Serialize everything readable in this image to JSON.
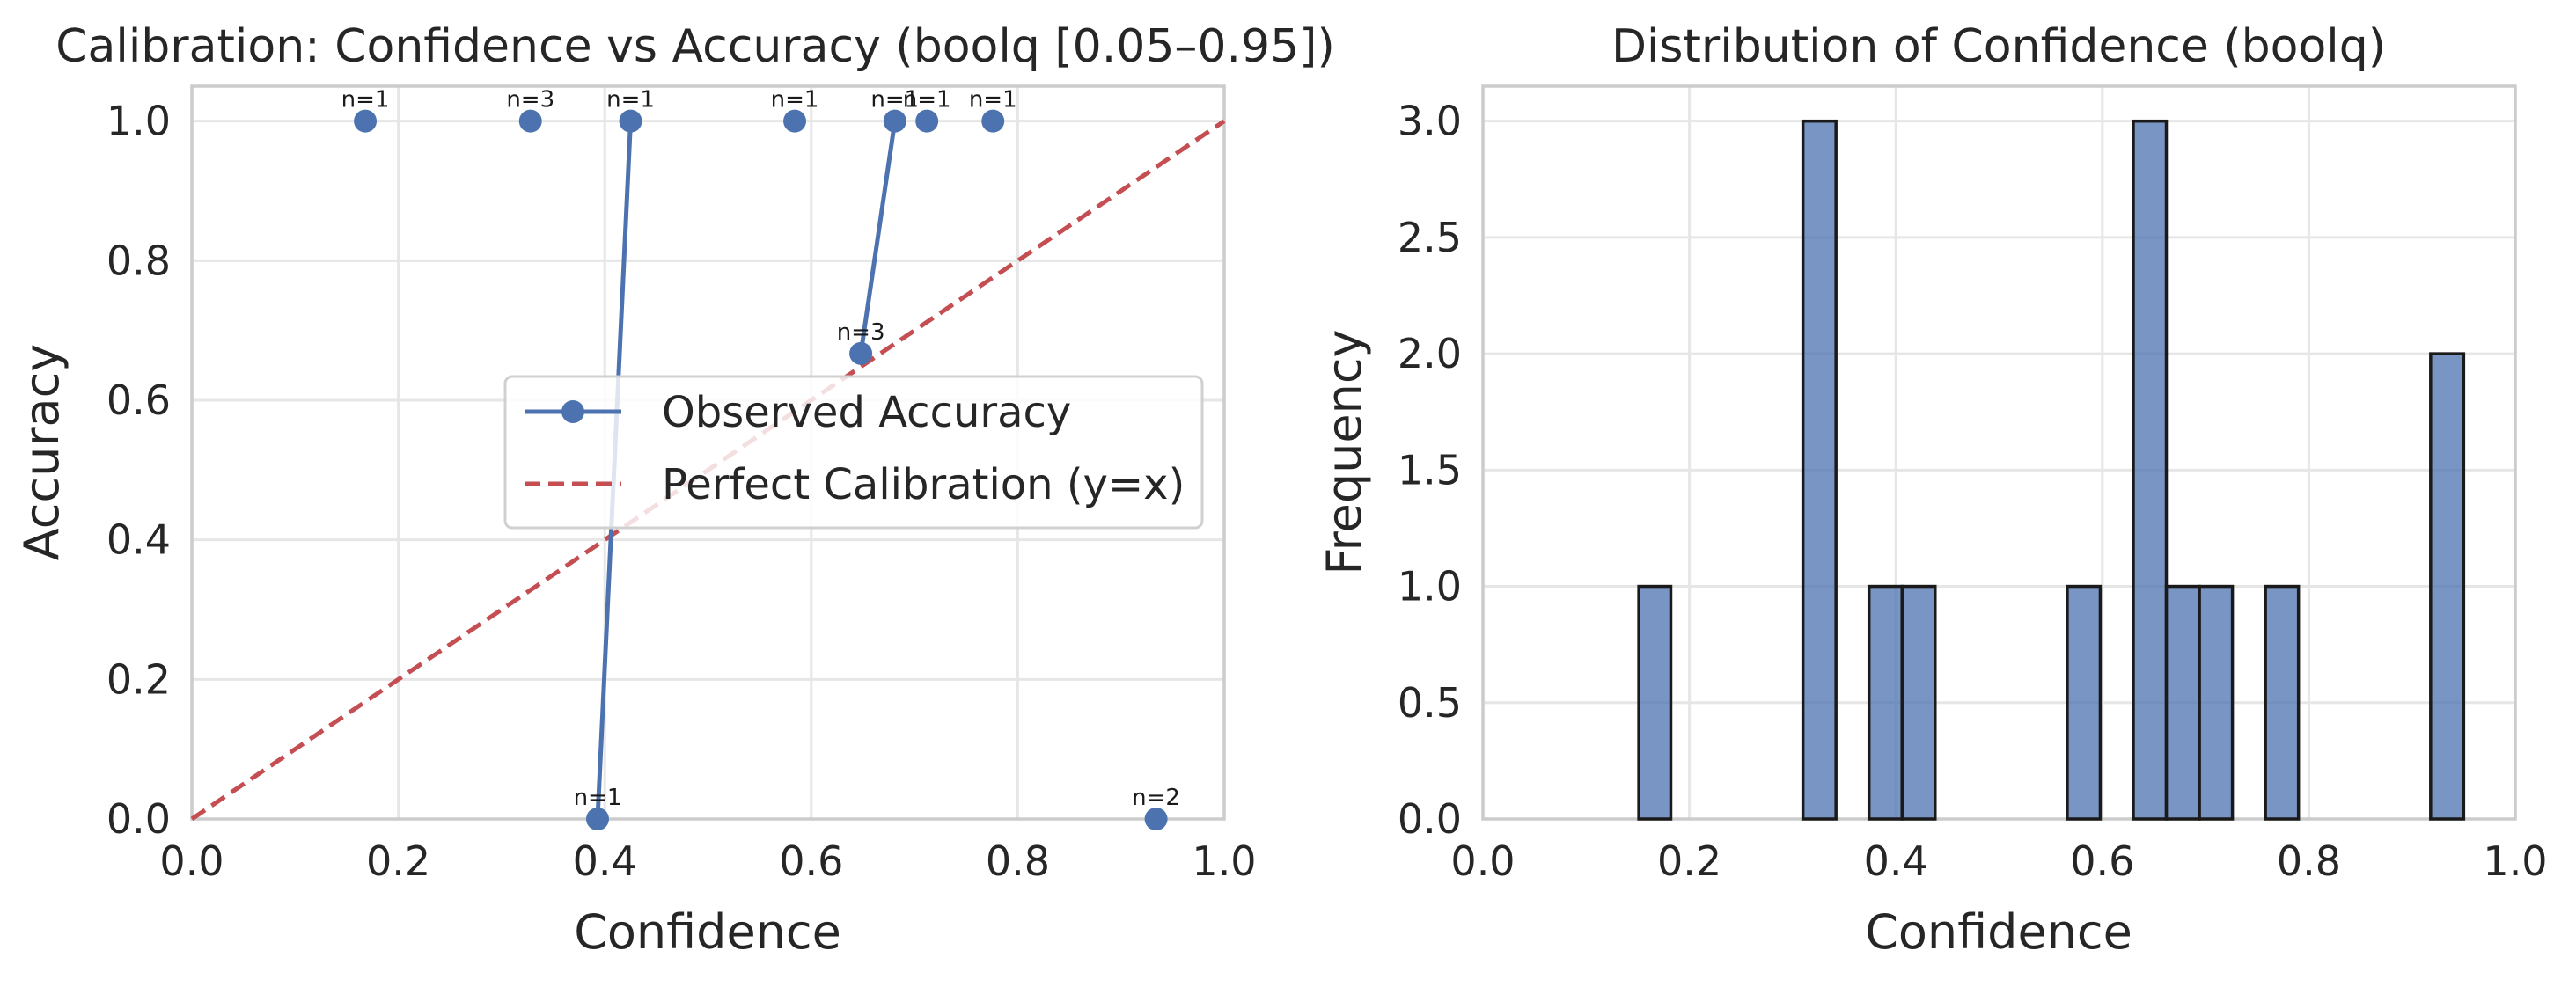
{
  "chart_data": [
    {
      "type": "line",
      "title": "Calibration: Confidence vs Accuracy (boolq [0.05–0.95])",
      "xlabel": "Confidence",
      "ylabel": "Accuracy",
      "xlim": [
        0,
        1
      ],
      "ylim": [
        0,
        1.05
      ],
      "x_ticks": [
        "0.0",
        "0.2",
        "0.4",
        "0.6",
        "0.8",
        "1.0"
      ],
      "y_ticks": [
        "0.0",
        "0.2",
        "0.4",
        "0.6",
        "0.8",
        "1.0"
      ],
      "grid": true,
      "legend_position": "center-right",
      "series": [
        {
          "name": "Observed Accuracy",
          "color": "#4C72B0",
          "style": "solid-line-with-circle-markers",
          "points": [
            {
              "x": 0.168,
              "y": 1.0,
              "label": "n=1"
            },
            {
              "x": 0.328,
              "y": 1.0,
              "label": "n=3"
            },
            {
              "x": 0.425,
              "y": 1.0,
              "label": "n=1"
            },
            {
              "x": 0.393,
              "y": 0.0,
              "label": "n=1"
            },
            {
              "x": 0.584,
              "y": 1.0,
              "label": "n=1"
            },
            {
              "x": 0.648,
              "y": 0.667,
              "label": "n=3"
            },
            {
              "x": 0.681,
              "y": 1.0,
              "label": "n=1"
            },
            {
              "x": 0.712,
              "y": 1.0,
              "label": "n=1"
            },
            {
              "x": 0.776,
              "y": 1.0,
              "label": "n=1"
            },
            {
              "x": 0.934,
              "y": 0.0,
              "label": "n=2"
            }
          ],
          "line_segments": [
            [
              0.393,
              0.0,
              0.425,
              1.0
            ],
            [
              0.648,
              0.667,
              0.681,
              1.0
            ]
          ]
        },
        {
          "name": "Perfect Calibration (y=x)",
          "color": "#C44E52",
          "style": "dashed",
          "points": [
            {
              "x": 0,
              "y": 0
            },
            {
              "x": 1,
              "y": 1
            }
          ]
        }
      ]
    },
    {
      "type": "bar",
      "title": "Distribution of Confidence (boolq)",
      "xlabel": "Confidence",
      "ylabel": "Frequency",
      "xlim": [
        0,
        1
      ],
      "ylim": [
        0,
        3.15
      ],
      "x_ticks": [
        "0.0",
        "0.2",
        "0.4",
        "0.6",
        "0.8",
        "1.0"
      ],
      "y_ticks": [
        "0.0",
        "0.5",
        "1.0",
        "1.5",
        "2.0",
        "2.5",
        "3.0"
      ],
      "grid": true,
      "color": "#4C72B0",
      "bins": [
        {
          "start": 0.151,
          "end": 0.182,
          "count": 1
        },
        {
          "start": 0.31,
          "end": 0.342,
          "count": 3
        },
        {
          "start": 0.374,
          "end": 0.406,
          "count": 1
        },
        {
          "start": 0.406,
          "end": 0.438,
          "count": 1
        },
        {
          "start": 0.566,
          "end": 0.598,
          "count": 1
        },
        {
          "start": 0.63,
          "end": 0.662,
          "count": 3
        },
        {
          "start": 0.662,
          "end": 0.694,
          "count": 1
        },
        {
          "start": 0.694,
          "end": 0.726,
          "count": 1
        },
        {
          "start": 0.758,
          "end": 0.79,
          "count": 1
        },
        {
          "start": 0.918,
          "end": 0.95,
          "count": 2
        }
      ]
    }
  ]
}
